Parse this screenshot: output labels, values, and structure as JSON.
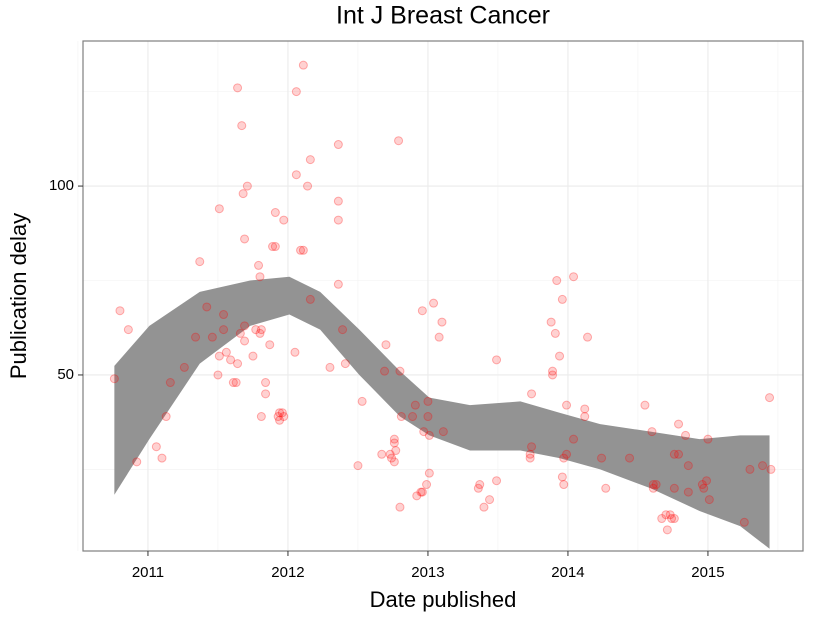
{
  "chart_data": {
    "type": "scatter",
    "title": "Int J Breast Cancer",
    "x_label": "Date published",
    "y_label": "Publication delay",
    "xlim": [
      2010.536,
      2015.679
    ],
    "ylim": [
      3.4,
      138.4
    ],
    "xticks": [
      2011,
      2012,
      2013,
      2014,
      2015
    ],
    "yticks": [
      50,
      100
    ],
    "xminor": [
      2010.5,
      2011.5,
      2012.5,
      2013.5,
      2014.5,
      2015.5
    ],
    "yminor": [
      25,
      75,
      125
    ],
    "grid": true,
    "color": "#ff0000",
    "x": [
      2010.76,
      2010.8,
      2010.86,
      2010.92,
      2011.06,
      2011.1,
      2011.13,
      2011.16,
      2011.26,
      2011.34,
      2011.37,
      2011.42,
      2011.46,
      2011.51,
      2011.5,
      2011.51,
      2011.54,
      2011.54,
      2011.56,
      2011.59,
      2011.61,
      2011.63,
      2011.64,
      2011.64,
      2011.66,
      2011.67,
      2011.68,
      2011.69,
      2011.69,
      2011.69,
      2011.71,
      2011.75,
      2011.77,
      2011.79,
      2011.8,
      2011.8,
      2011.81,
      2011.81,
      2011.84,
      2011.84,
      2011.87,
      2011.89,
      2011.91,
      2011.91,
      2011.93,
      2011.94,
      2011.94,
      2011.96,
      2011.97,
      2011.97,
      2012.05,
      2012.06,
      2012.06,
      2012.09,
      2012.11,
      2012.11,
      2012.14,
      2012.16,
      2012.16,
      2012.3,
      2012.36,
      2012.36,
      2012.36,
      2012.36,
      2012.39,
      2012.41,
      2012.53,
      2012.5,
      2012.67,
      2012.69,
      2012.7,
      2012.73,
      2012.74,
      2012.76,
      2012.76,
      2012.76,
      2012.77,
      2012.79,
      2012.8,
      2012.8,
      2012.81,
      2012.89,
      2012.91,
      2012.92,
      2012.95,
      2012.96,
      2012.96,
      2012.97,
      2012.99,
      2013.0,
      2013.0,
      2013.01,
      2013.01,
      2013.04,
      2013.08,
      2013.1,
      2013.11,
      2013.36,
      2013.37,
      2013.4,
      2013.44,
      2013.49,
      2013.49,
      2013.73,
      2013.73,
      2013.74,
      2013.74,
      2013.88,
      2013.89,
      2013.89,
      2013.91,
      2013.92,
      2013.94,
      2013.96,
      2013.96,
      2013.97,
      2013.97,
      2013.99,
      2013.99,
      2014.04,
      2014.04,
      2014.12,
      2014.12,
      2014.14,
      2014.24,
      2014.27,
      2014.44,
      2014.55,
      2014.6,
      2014.61,
      2014.61,
      2014.63,
      2014.67,
      2014.7,
      2014.71,
      2014.73,
      2014.74,
      2014.76,
      2014.76,
      2014.76,
      2014.79,
      2014.79,
      2014.84,
      2014.86,
      2014.86,
      2014.96,
      2014.97,
      2014.99,
      2015.0,
      2015.01,
      2015.26,
      2015.3,
      2015.39,
      2015.44,
      2015.45
    ],
    "values": [
      49,
      67,
      62,
      27,
      31,
      28,
      39,
      48,
      52,
      60,
      80,
      68,
      60,
      94,
      50,
      55,
      62,
      66,
      56,
      54,
      48,
      48,
      126,
      53,
      61,
      116,
      98,
      86,
      63,
      59,
      100,
      55,
      62,
      79,
      61,
      76,
      62,
      39,
      48,
      45,
      58,
      84,
      84,
      93,
      39,
      38,
      40,
      40,
      91,
      39,
      56,
      125,
      103,
      83,
      83,
      132,
      100,
      107,
      70,
      52,
      111,
      96,
      91,
      74,
      62,
      53,
      43,
      26,
      29,
      51,
      58,
      29,
      28,
      27,
      33,
      32,
      30,
      112,
      51,
      15,
      39,
      39,
      42,
      18,
      19,
      67,
      19,
      35,
      21,
      39,
      43,
      24,
      34,
      69,
      60,
      64,
      35,
      20,
      21,
      15,
      17,
      22,
      54,
      29,
      28,
      31,
      45,
      64,
      50,
      51,
      61,
      75,
      55,
      70,
      23,
      28,
      21,
      42,
      29,
      33,
      76,
      41,
      39,
      60,
      28,
      20,
      28,
      42,
      35,
      21,
      20,
      21,
      12,
      13,
      9,
      13,
      12,
      29,
      20,
      12,
      37,
      29,
      34,
      26,
      19,
      21,
      20,
      22,
      33,
      17,
      11,
      25,
      26,
      44,
      25
    ],
    "band": {
      "color": "#939393",
      "x": [
        2010.76,
        2011.01,
        2011.37,
        2011.73,
        2012.01,
        2012.23,
        2012.51,
        2012.8,
        2013.01,
        2013.3,
        2013.66,
        2013.94,
        2014.23,
        2014.59,
        2014.94,
        2015.23,
        2015.44
      ],
      "upper": [
        52.4,
        63,
        72,
        75,
        76,
        72,
        62,
        51,
        44,
        42,
        43,
        40,
        37,
        35,
        33,
        34,
        34
      ],
      "lower": [
        18.3,
        33,
        53,
        63,
        66,
        62,
        50,
        39,
        34,
        30,
        30,
        28,
        25,
        20,
        14,
        10,
        4
      ]
    }
  }
}
